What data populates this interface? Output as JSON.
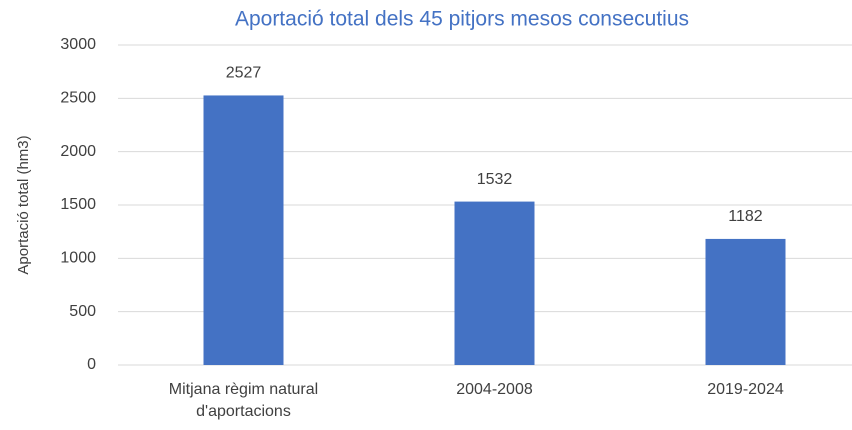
{
  "chart_data": {
    "type": "bar",
    "title": "Aportació total dels 45 pitjors mesos consecutius",
    "y_axis_label": "Aportació total (hm3)",
    "categories": [
      "Mitjana règim natural d'aportacions",
      "2004-2008",
      "2019-2024"
    ],
    "values": [
      2527,
      1532,
      1182
    ],
    "color": "#4472c4",
    "ylim": [
      0,
      3000
    ],
    "yticks": [
      0,
      500,
      1000,
      1500,
      2000,
      2500,
      3000
    ],
    "grid": true
  }
}
